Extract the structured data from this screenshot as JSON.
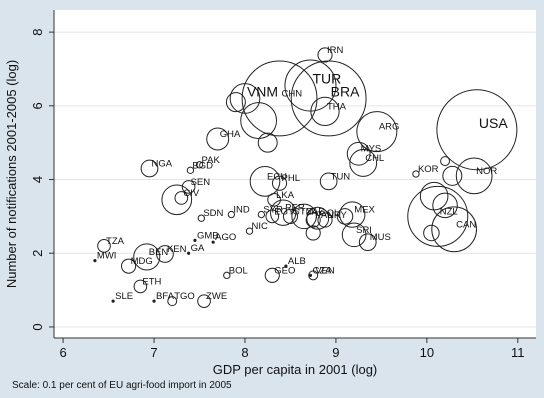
{
  "chart_data": {
    "type": "scatter",
    "xlabel": "GDP per capita in 2001 (log)",
    "ylabel": "Number of notifications 2001-2005 (log)",
    "note": "Scale: 0.1 per cent of EU agri-food import in 2005",
    "xlim": [
      5.9,
      11.2
    ],
    "ylim": [
      -0.3,
      8.6
    ],
    "xticks": [
      6,
      7,
      8,
      9,
      10,
      11
    ],
    "yticks": [
      0,
      2,
      4,
      6,
      8
    ],
    "grid": "horizontal",
    "colors": {
      "background": "#d9e4ec",
      "plot": "#ffffff",
      "grid": "#e0e6ea",
      "marker": "#222222"
    },
    "points": [
      {
        "label": "IRN",
        "x": 8.88,
        "y": 7.38,
        "size": 0.5
      },
      {
        "label": "TUR",
        "x": 8.72,
        "y": 6.55,
        "size": 6.5,
        "big": true
      },
      {
        "label": "CHN",
        "x": 8.38,
        "y": 6.2,
        "size": 14
      },
      {
        "label": "BRA",
        "x": 8.92,
        "y": 6.2,
        "size": 14,
        "big": true
      },
      {
        "label": "THA",
        "x": 8.88,
        "y": 5.85,
        "size": 2
      },
      {
        "label": "VNM",
        "x": 8.0,
        "y": 6.2,
        "size": 2.2,
        "big": true
      },
      {
        "label": "",
        "x": 7.9,
        "y": 6.1,
        "size": 0.9
      },
      {
        "label": "",
        "x": 8.15,
        "y": 5.6,
        "size": 3.2
      },
      {
        "label": "",
        "x": 8.25,
        "y": 5.0,
        "size": 0.9
      },
      {
        "label": "GHA",
        "x": 7.7,
        "y": 5.1,
        "size": 1.2
      },
      {
        "label": "ARG",
        "x": 9.45,
        "y": 5.3,
        "size": 4
      },
      {
        "label": "USA",
        "x": 10.55,
        "y": 5.35,
        "size": 16,
        "big": true
      },
      {
        "label": "MYS",
        "x": 9.25,
        "y": 4.7,
        "size": 1.3
      },
      {
        "label": "CHL",
        "x": 9.3,
        "y": 4.45,
        "size": 1.8
      },
      {
        "label": "KOR",
        "x": 9.88,
        "y": 4.15,
        "size": 0.1
      },
      {
        "label": "",
        "x": 10.2,
        "y": 4.5,
        "size": 0.2
      },
      {
        "label": "NOR",
        "x": 10.52,
        "y": 4.1,
        "size": 3.2
      },
      {
        "label": "",
        "x": 10.28,
        "y": 4.1,
        "size": 0.9
      },
      {
        "label": "NGA",
        "x": 6.95,
        "y": 4.3,
        "size": 0.7
      },
      {
        "label": "PAK",
        "x": 7.5,
        "y": 4.4,
        "size": 0.1
      },
      {
        "label": "BGD",
        "x": 7.4,
        "y": 4.25,
        "size": 0.1
      },
      {
        "label": "SEN",
        "x": 7.38,
        "y": 3.8,
        "size": 0.4
      },
      {
        "label": "CIV",
        "x": 7.3,
        "y": 3.5,
        "size": 0.4
      },
      {
        "label": "",
        "x": 7.25,
        "y": 3.45,
        "size": 2.2
      },
      {
        "label": "ECU",
        "x": 8.22,
        "y": 3.95,
        "size": 2.2
      },
      {
        "label": "PHL",
        "x": 8.38,
        "y": 3.9,
        "size": 0.5
      },
      {
        "label": "TUN",
        "x": 8.92,
        "y": 3.95,
        "size": 0.7
      },
      {
        "label": "LKA",
        "x": 8.32,
        "y": 3.45,
        "size": 0.4
      },
      {
        "label": "SYR",
        "x": 8.18,
        "y": 3.05,
        "size": 0.1
      },
      {
        "label": "PER",
        "x": 8.42,
        "y": 3.1,
        "size": 1.6
      },
      {
        "label": "GTM",
        "x": 8.5,
        "y": 3.0,
        "size": 0.5
      },
      {
        "label": "EGY",
        "x": 8.3,
        "y": 3.0,
        "size": 0.4
      },
      {
        "label": "IND",
        "x": 7.85,
        "y": 3.05,
        "size": 0.1
      },
      {
        "label": "PAN",
        "x": 8.75,
        "y": 2.9,
        "size": 0.5
      },
      {
        "label": "ZAF",
        "x": 8.65,
        "y": 3.0,
        "size": 1.5
      },
      {
        "label": "COL",
        "x": 8.8,
        "y": 2.95,
        "size": 1.2
      },
      {
        "label": "MEX",
        "x": 9.18,
        "y": 3.05,
        "size": 1.6
      },
      {
        "label": "URY",
        "x": 8.88,
        "y": 2.9,
        "size": 0.5
      },
      {
        "label": "",
        "x": 9.1,
        "y": 3.0,
        "size": 0.6
      },
      {
        "label": "",
        "x": 8.75,
        "y": 2.55,
        "size": 0.5
      },
      {
        "label": "NIC",
        "x": 8.05,
        "y": 2.6,
        "size": 0.1
      },
      {
        "label": "SRI",
        "x": 9.2,
        "y": 2.5,
        "size": 1.4
      },
      {
        "label": "MUS",
        "x": 9.35,
        "y": 2.3,
        "size": 0.7
      },
      {
        "label": "NZL",
        "x": 10.12,
        "y": 3.0,
        "size": 9
      },
      {
        "label": "CAN",
        "x": 10.3,
        "y": 2.65,
        "size": 5
      },
      {
        "label": "",
        "x": 10.05,
        "y": 2.55,
        "size": 0.6
      },
      {
        "label": "",
        "x": 10.2,
        "y": 3.3,
        "size": 1.5
      },
      {
        "label": "",
        "x": 10.08,
        "y": 3.55,
        "size": 1.9
      },
      {
        "label": "SDN",
        "x": 7.52,
        "y": 2.95,
        "size": 0.1
      },
      {
        "label": "GMB",
        "x": 7.45,
        "y": 2.35,
        "size": 0.05
      },
      {
        "label": "AGO",
        "x": 7.65,
        "y": 2.3,
        "size": 0.05
      },
      {
        "label": "TZA",
        "x": 6.45,
        "y": 2.2,
        "size": 0.4
      },
      {
        "label": "MWI",
        "x": 6.35,
        "y": 1.8,
        "size": 0.05
      },
      {
        "label": "KEN",
        "x": 7.12,
        "y": 1.98,
        "size": 0.7
      },
      {
        "label": "GA",
        "x": 7.38,
        "y": 2.0,
        "size": 0.05
      },
      {
        "label": "BEN",
        "x": 6.92,
        "y": 1.9,
        "size": 1.7
      },
      {
        "label": "MDG",
        "x": 6.72,
        "y": 1.65,
        "size": 0.5
      },
      {
        "label": "ETH",
        "x": 6.85,
        "y": 1.1,
        "size": 0.4
      },
      {
        "label": "BOL",
        "x": 7.8,
        "y": 1.4,
        "size": 0.1
      },
      {
        "label": "ALB",
        "x": 8.45,
        "y": 1.65,
        "size": 0.05
      },
      {
        "label": "GEO",
        "x": 8.3,
        "y": 1.4,
        "size": 0.5
      },
      {
        "label": "VEN",
        "x": 8.75,
        "y": 1.4,
        "size": 0.2
      },
      {
        "label": "CZA",
        "x": 8.72,
        "y": 1.4,
        "size": 0.05
      },
      {
        "label": "SLE",
        "x": 6.55,
        "y": 0.7,
        "size": 0.02
      },
      {
        "label": "BFA",
        "x": 7.0,
        "y": 0.7,
        "size": 0.02
      },
      {
        "label": "TGO",
        "x": 7.2,
        "y": 0.7,
        "size": 0.2
      },
      {
        "label": "ZWE",
        "x": 7.55,
        "y": 0.7,
        "size": 0.4
      }
    ]
  }
}
